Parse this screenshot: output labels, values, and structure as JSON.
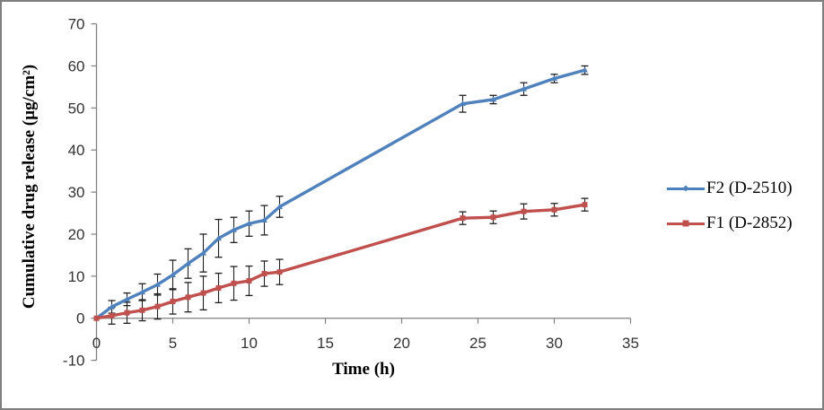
{
  "figure": {
    "border_color": "#7f7f7f",
    "background": "#ffffff"
  },
  "chart_data": {
    "type": "line",
    "title": "",
    "xlabel": "Time (h)",
    "ylabel": "Cumulative drug release (µg/cm²)",
    "xlim": [
      0,
      35
    ],
    "ylim": [
      -10,
      70
    ],
    "x_ticks": [
      0,
      5,
      10,
      15,
      20,
      25,
      30,
      35
    ],
    "y_ticks": [
      -10,
      0,
      10,
      20,
      30,
      40,
      50,
      60,
      70
    ],
    "grid": false,
    "error_bars": true,
    "legend_position": "right-middle",
    "colors": {
      "axis": "#808080",
      "tick_text": "#333333",
      "error_bar": "#1f1f1f",
      "f2_blue": "#4F81BD",
      "f1_red": "#C0504D"
    },
    "series": [
      {
        "id": "f2",
        "name": "F2 (D-2510)",
        "color": "#4F81BD",
        "marker": "triangle",
        "x": [
          0,
          1,
          2,
          3,
          4,
          5,
          6,
          7,
          8,
          9,
          10,
          11,
          12,
          24,
          26,
          28,
          30,
          32
        ],
        "y": [
          0,
          2.7,
          4.5,
          6.2,
          8,
          10.3,
          13,
          15.5,
          19,
          21,
          22.5,
          23.3,
          26.5,
          51,
          52,
          54.5,
          57,
          59
        ],
        "err": [
          0,
          1.5,
          1.5,
          2,
          2.5,
          3.5,
          3.5,
          4.5,
          4.5,
          3,
          3,
          3.5,
          2.5,
          2,
          1,
          1.5,
          1,
          1
        ]
      },
      {
        "id": "f1",
        "name": "F1 (D-2852)",
        "color": "#C0504D",
        "marker": "square",
        "x": [
          0,
          1,
          2,
          3,
          4,
          5,
          6,
          7,
          8,
          9,
          10,
          11,
          12,
          24,
          26,
          28,
          30,
          32
        ],
        "y": [
          0,
          0.6,
          1.3,
          1.9,
          2.8,
          4,
          5,
          6,
          7.2,
          8.3,
          8.9,
          10.6,
          11,
          23.8,
          24,
          25.4,
          25.8,
          27
        ],
        "err": [
          0,
          2,
          2.5,
          2.5,
          3,
          3,
          3.5,
          4,
          3.5,
          4,
          3.5,
          3,
          3,
          1.5,
          1.5,
          1.8,
          1.5,
          1.5
        ]
      }
    ]
  }
}
